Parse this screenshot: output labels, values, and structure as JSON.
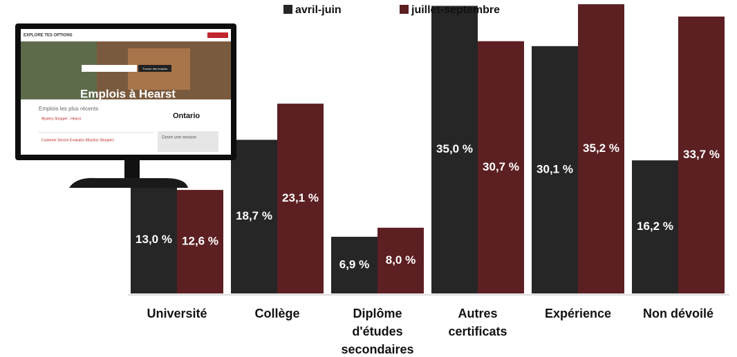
{
  "chart_data": {
    "type": "bar",
    "categories": [
      "Université",
      "Collège",
      "Diplôme d'études secondaires",
      "Autres certificats",
      "Expérience",
      "Non dévoilé"
    ],
    "series": [
      {
        "name": "avril-juin",
        "color": "#262626",
        "values": [
          13.0,
          18.7,
          6.9,
          35.0,
          30.1,
          16.2
        ],
        "value_labels": [
          "13,0 %",
          "18,7 %",
          "6,9 %",
          "35,0 %",
          "30,1 %",
          "16,2 %"
        ]
      },
      {
        "name": "juillet-septembre",
        "color": "#5c1f22",
        "values": [
          12.6,
          23.1,
          8.0,
          30.7,
          35.2,
          33.7
        ],
        "value_labels": [
          "12,6 %",
          "23,1 %",
          "8,0 %",
          "30,7 %",
          "35,2 %",
          "33,7 %"
        ]
      }
    ]
  },
  "monitor_screen": {
    "logo": "EXPLORE TES OPTIONS",
    "search_button": "Trouver des emplois",
    "banner": "Emplois à Hearst",
    "recent_heading": "Emplois les plus récents",
    "job_1": "Mystery Shopper - Hearst",
    "job_2": "Customer Service Evaluator (Mystery Shopper)",
    "brand": "Ontario",
    "login": "Ouvrir une session"
  }
}
